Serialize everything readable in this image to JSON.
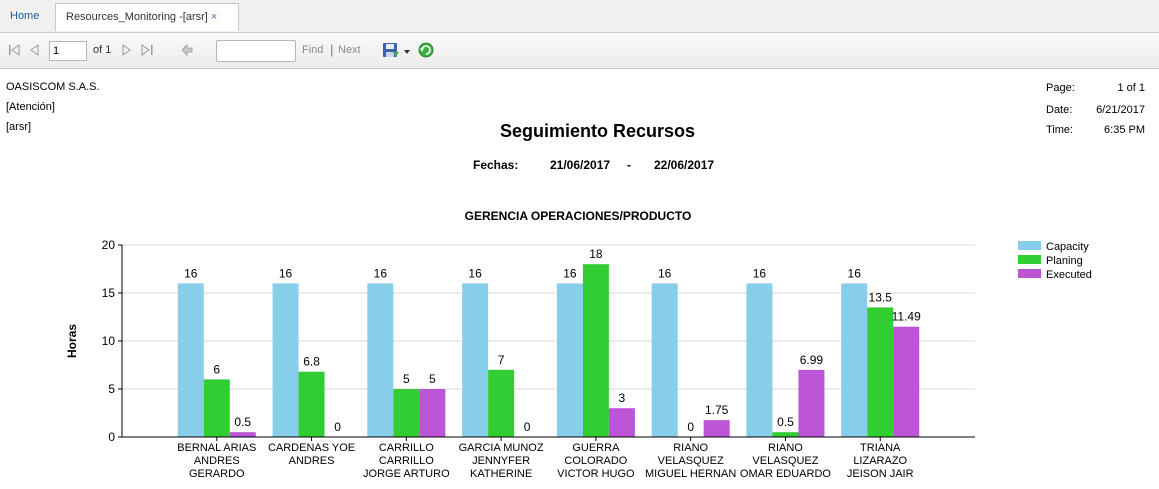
{
  "tabs": [
    {
      "label": "Home",
      "active": false
    },
    {
      "label": "Resources_Monitoring -[arsr]",
      "active": true,
      "close": "×"
    }
  ],
  "toolbar": {
    "page_value": "1",
    "of_label": "of 1",
    "find_label": "Find",
    "separator": "|",
    "next_label": "Next",
    "icons": [
      "first-page-icon",
      "prev-page-icon",
      "next-page-icon",
      "last-page-icon",
      "back-icon",
      "export-save-icon",
      "dropdown-icon",
      "refresh-icon"
    ]
  },
  "report": {
    "company": "OASISCOM S.A.S.",
    "attention": "[Atención]",
    "user": "[arsr]",
    "page_label": "Page:",
    "page_value": "1 of 1",
    "date_label": "Date:",
    "date_value": "6/21/2017",
    "time_label": "Time:",
    "time_value": "6:35 PM",
    "title": "Seguimiento Recursos",
    "fechas_label": "Fechas:",
    "fecha_from": "21/06/2017",
    "fecha_dash": "-",
    "fecha_to": "22/06/2017"
  },
  "colors": {
    "capacity": "#87ceeb",
    "planing": "#32cd32",
    "executed": "#bb55d6",
    "accent": "#1a5fa8"
  },
  "chart_data": {
    "type": "bar",
    "title": "GERENCIA OPERACIONES/PRODUCTO",
    "xlabel": "",
    "ylabel": "Horas",
    "ylim": [
      0,
      20
    ],
    "yticks": [
      0,
      5,
      10,
      15,
      20
    ],
    "grid": true,
    "legend_position": "top-right",
    "categories": [
      [
        "BERNAL ARIAS",
        "ANDRES",
        "GERARDO"
      ],
      [
        "CARDENAS  YOE",
        "ANDRES"
      ],
      [
        "CARRILLO",
        "CARRILLO",
        "JORGE ARTURO"
      ],
      [
        "GARCIA MUNOZ",
        "JENNYFER",
        "KATHERINE"
      ],
      [
        "GUERRA",
        "COLORADO",
        "VICTOR HUGO"
      ],
      [
        "RIANO",
        "VELASQUEZ",
        "MIGUEL HERNAN"
      ],
      [
        "RIANO",
        "VELASQUEZ",
        "OMAR EDUARDO"
      ],
      [
        "TRIANA",
        "LIZARAZO",
        "JEISON JAIR"
      ]
    ],
    "series": [
      {
        "name": "Capacity",
        "color": "#87ceeb",
        "values": [
          16,
          16,
          16,
          16,
          16,
          16,
          16,
          16
        ],
        "labels": [
          "16",
          "16",
          "16",
          "16",
          "16",
          "16",
          "16",
          "16"
        ]
      },
      {
        "name": "Planing",
        "color": "#32cd32",
        "values": [
          6,
          6.8,
          5,
          7,
          18,
          0,
          0.5,
          13.5
        ],
        "labels": [
          "6",
          "6.8",
          "5",
          "7",
          "18",
          "0",
          "0.5",
          "13.5"
        ]
      },
      {
        "name": "Executed",
        "color": "#bb55d6",
        "values": [
          0.5,
          0,
          5,
          0,
          3,
          1.75,
          6.99,
          11.49
        ],
        "labels": [
          "0.5",
          "0",
          "5",
          "0",
          "3",
          "1.75",
          "6.99",
          "11.49"
        ]
      }
    ]
  }
}
